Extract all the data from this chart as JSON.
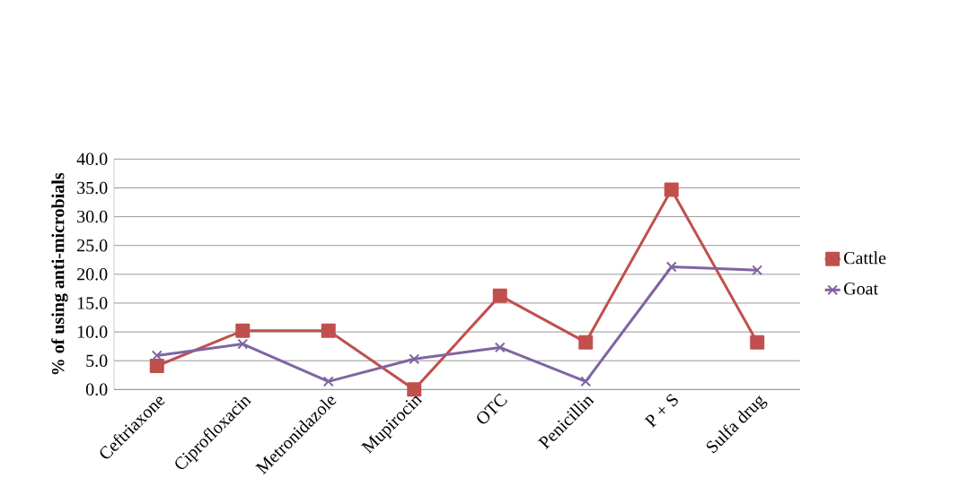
{
  "chart_data": {
    "type": "line",
    "ylabel": "% of using anti-microbials",
    "categories": [
      "Ceftriaxone",
      "Ciprofloxacin",
      "Metronidazole",
      "Mupirocin",
      "OTC",
      "Penicillin",
      "P + S",
      "Sulfa drug"
    ],
    "series": [
      {
        "name": "Cattle",
        "color": "#c0504d",
        "marker": "square",
        "values": [
          4.1,
          10.2,
          10.2,
          0.0,
          16.3,
          8.2,
          34.7,
          8.2
        ]
      },
      {
        "name": "Goat",
        "color": "#8064a2",
        "marker": "cross",
        "values": [
          5.9,
          7.9,
          1.4,
          5.3,
          7.3,
          1.4,
          21.3,
          20.7
        ]
      }
    ],
    "ylim": [
      0,
      40
    ],
    "yticks": [
      {
        "value": 0,
        "label": "0.0"
      },
      {
        "value": 5,
        "label": "5.0"
      },
      {
        "value": 10,
        "label": "10.0"
      },
      {
        "value": 15,
        "label": "15.0"
      },
      {
        "value": 20,
        "label": "20.0"
      },
      {
        "value": 25,
        "label": "25.0"
      },
      {
        "value": 30,
        "label": "30.0"
      },
      {
        "value": 35,
        "label": "35.0"
      },
      {
        "value": 40,
        "label": "40.0"
      }
    ],
    "grid": "y",
    "legend": "right",
    "line_style": "solid"
  }
}
